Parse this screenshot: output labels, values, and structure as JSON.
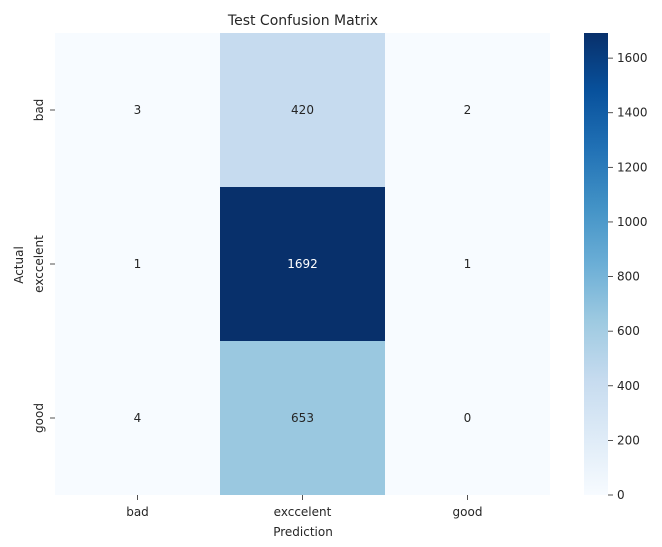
{
  "chart_data": {
    "type": "heatmap",
    "title": "Test Confusion Matrix",
    "xlabel": "Prediction",
    "ylabel": "Actual",
    "x_categories": [
      "bad",
      "exccelent",
      "good"
    ],
    "y_categories": [
      "bad",
      "exccelent",
      "good"
    ],
    "values": [
      [
        3,
        420,
        2
      ],
      [
        1,
        1692,
        1
      ],
      [
        4,
        653,
        0
      ]
    ],
    "colorbar": {
      "min": 0,
      "max": 1692,
      "ticks": [
        0,
        200,
        400,
        600,
        800,
        1000,
        1200,
        1400,
        1600
      ],
      "colormap": "Blues"
    }
  }
}
